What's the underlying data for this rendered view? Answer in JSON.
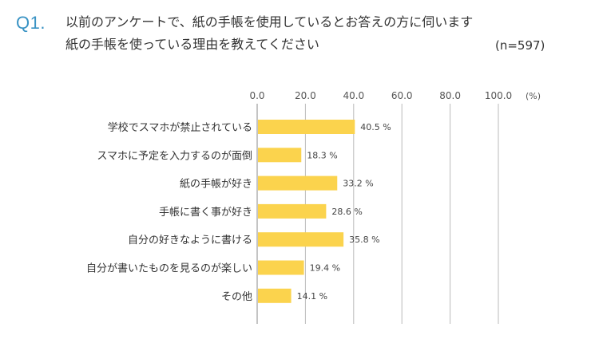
{
  "header": {
    "q_number": "Q1.",
    "question_line1": "以前のアンケートで、紙の手帳を使用しているとお答えの方に伺います",
    "question_line2": "紙の手帳を使っている理由を教えてください",
    "sample_size": "(n=597)"
  },
  "colors": {
    "bar": "#fbd34d",
    "grid": "#bbbbbb",
    "axis": "#888888",
    "accent": "#3a93c4"
  },
  "chart_data": {
    "type": "bar",
    "orientation": "horizontal",
    "categories": [
      "学校でスマホが禁止されている",
      "スマホに予定を入力するのが面倒",
      "紙の手帳が好き",
      "手帳に書く事が好き",
      "自分の好きなように書ける",
      "自分が書いたものを見るのが楽しい",
      "その他"
    ],
    "values": [
      40.5,
      18.3,
      33.2,
      28.6,
      35.8,
      19.4,
      14.1
    ],
    "value_labels": [
      "40.5 %",
      "18.3 %",
      "33.2 %",
      "28.6 %",
      "35.8 %",
      "19.4 %",
      "14.1 %"
    ],
    "xlim": [
      0,
      100
    ],
    "xticks": [
      "0.0",
      "20.0",
      "40.0",
      "60.0",
      "80.0",
      "100.0"
    ],
    "xtick_values": [
      0,
      20,
      40,
      60,
      80,
      100
    ],
    "unit_label": "(%)",
    "grid": true,
    "axis_position": "top"
  }
}
